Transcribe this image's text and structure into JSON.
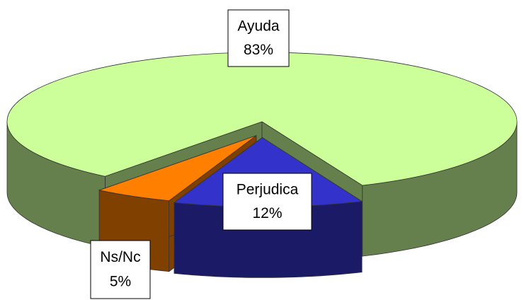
{
  "chart_data": {
    "type": "pie",
    "categories": [
      "Ayuda",
      "Perjudica",
      "Ns/Nc"
    ],
    "values": [
      83,
      12,
      5
    ],
    "value_labels": [
      "83%",
      "12%",
      "5%"
    ],
    "colors": [
      "#ccff99",
      "#3333cc",
      "#ff8000"
    ]
  }
}
